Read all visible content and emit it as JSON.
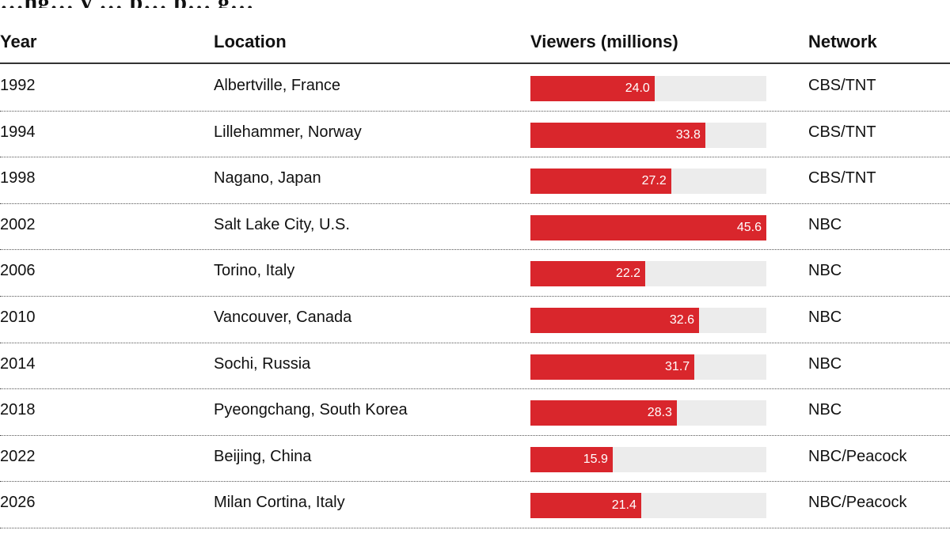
{
  "title_fragment": "…ng… y … p… p… g…",
  "table": {
    "headers": {
      "year": "Year",
      "location": "Location",
      "viewers": "Viewers (millions)",
      "network": "Network"
    }
  },
  "colors": {
    "bar": "#d9262c",
    "track": "#ececec",
    "rule": "#333333"
  },
  "chart_data": {
    "type": "bar",
    "orientation": "horizontal",
    "title": "",
    "xlabel": "Viewers (millions)",
    "ylabel": "",
    "xlim": [
      0,
      45.6
    ],
    "categories": [
      "1992",
      "1994",
      "1998",
      "2002",
      "2006",
      "2010",
      "2014",
      "2018",
      "2022",
      "2026"
    ],
    "values": [
      24.0,
      33.8,
      27.2,
      45.6,
      22.2,
      32.6,
      31.7,
      28.3,
      15.9,
      21.4
    ],
    "value_labels": [
      "24.0",
      "33.8",
      "27.2",
      "45.6",
      "22.2",
      "32.6",
      "31.7",
      "28.3",
      "15.9",
      "21.4"
    ],
    "locations": [
      "Albertville, France",
      "Lillehammer, Norway",
      "Nagano, Japan",
      "Salt Lake City, U.S.",
      "Torino, Italy",
      "Vancouver, Canada",
      "Sochi, Russia",
      "Pyeongchang, South Korea",
      "Beijing, China",
      "Milan Cortina, Italy"
    ],
    "networks": [
      "CBS/TNT",
      "CBS/TNT",
      "CBS/TNT",
      "NBC",
      "NBC",
      "NBC",
      "NBC",
      "NBC",
      "NBC/Peacock",
      "NBC/Peacock"
    ]
  }
}
